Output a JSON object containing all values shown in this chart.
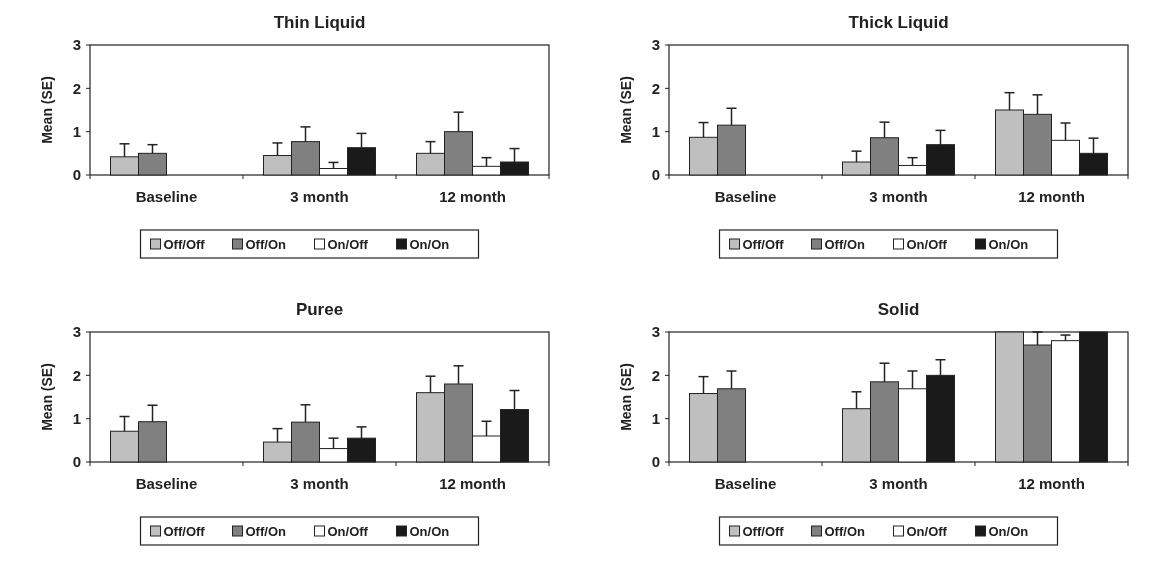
{
  "chart_data": [
    {
      "type": "bar",
      "title": "Thin Liquid",
      "ylabel": "Mean (SE)",
      "categories": [
        "Baseline",
        "3 month",
        "12 month"
      ],
      "ylim": [
        0,
        3
      ],
      "yticks": [
        0,
        1,
        2,
        3
      ],
      "legend": "bottom",
      "series": [
        {
          "name": "Off/Off",
          "color": "#bfbfbf",
          "values": [
            0.42,
            0.45,
            0.5
          ],
          "errors": [
            [
              0.42,
              0.72
            ],
            [
              0.45,
              0.74
            ],
            [
              0.5,
              0.77
            ]
          ]
        },
        {
          "name": "Off/On",
          "color": "#808080",
          "values": [
            0.5,
            0.77,
            1.0
          ],
          "errors": [
            [
              0.5,
              0.7
            ],
            [
              0.77,
              1.11
            ],
            [
              1.0,
              1.45
            ]
          ]
        },
        {
          "name": "On/Off",
          "color": "#ffffff",
          "values": [
            null,
            0.15,
            0.2
          ],
          "errors": [
            null,
            [
              0.15,
              0.29
            ],
            [
              0.2,
              0.4
            ]
          ]
        },
        {
          "name": "On/On",
          "color": "#1a1a1a",
          "values": [
            null,
            0.63,
            0.3
          ],
          "errors": [
            null,
            [
              0.63,
              0.96
            ],
            [
              0.3,
              0.61
            ]
          ]
        }
      ]
    },
    {
      "type": "bar",
      "title": "Thick Liquid",
      "ylabel": "Mean (SE)",
      "categories": [
        "Baseline",
        "3 month",
        "12 month"
      ],
      "ylim": [
        0,
        3
      ],
      "yticks": [
        0,
        1,
        2,
        3
      ],
      "legend": "bottom",
      "series": [
        {
          "name": "Off/Off",
          "color": "#bfbfbf",
          "values": [
            0.87,
            0.3,
            1.5
          ],
          "errors": [
            [
              0.87,
              1.21
            ],
            [
              0.3,
              0.55
            ],
            [
              1.5,
              1.9
            ]
          ]
        },
        {
          "name": "Off/On",
          "color": "#808080",
          "values": [
            1.15,
            0.86,
            1.4
          ],
          "errors": [
            [
              1.15,
              1.54
            ],
            [
              0.86,
              1.22
            ],
            [
              1.4,
              1.85
            ]
          ]
        },
        {
          "name": "On/Off",
          "color": "#ffffff",
          "values": [
            null,
            0.22,
            0.8
          ],
          "errors": [
            null,
            [
              0.22,
              0.4
            ],
            [
              0.8,
              1.2
            ]
          ]
        },
        {
          "name": "On/On",
          "color": "#1a1a1a",
          "values": [
            null,
            0.7,
            0.5
          ],
          "errors": [
            null,
            [
              0.7,
              1.03
            ],
            [
              0.5,
              0.85
            ]
          ]
        }
      ]
    },
    {
      "type": "bar",
      "title": "Puree",
      "ylabel": "Mean (SE)",
      "categories": [
        "Baseline",
        "3 month",
        "12 month"
      ],
      "ylim": [
        0,
        3
      ],
      "yticks": [
        0,
        1,
        2,
        3
      ],
      "legend": "bottom",
      "series": [
        {
          "name": "Off/Off",
          "color": "#bfbfbf",
          "values": [
            0.71,
            0.46,
            1.6
          ],
          "errors": [
            [
              0.71,
              1.05
            ],
            [
              0.46,
              0.77
            ],
            [
              1.6,
              1.98
            ]
          ]
        },
        {
          "name": "Off/On",
          "color": "#808080",
          "values": [
            0.93,
            0.92,
            1.8
          ],
          "errors": [
            [
              0.93,
              1.31
            ],
            [
              0.92,
              1.32
            ],
            [
              1.8,
              2.22
            ]
          ]
        },
        {
          "name": "On/Off",
          "color": "#ffffff",
          "values": [
            null,
            0.31,
            0.6
          ],
          "errors": [
            null,
            [
              0.31,
              0.55
            ],
            [
              0.6,
              0.94
            ]
          ]
        },
        {
          "name": "On/On",
          "color": "#1a1a1a",
          "values": [
            null,
            0.55,
            1.21
          ],
          "errors": [
            null,
            [
              0.55,
              0.81
            ],
            [
              1.21,
              1.65
            ]
          ]
        }
      ]
    },
    {
      "type": "bar",
      "title": "Solid",
      "ylabel": "Mean (SE)",
      "categories": [
        "Baseline",
        "3 month",
        "12 month"
      ],
      "ylim": [
        0,
        3
      ],
      "yticks": [
        0,
        1,
        2,
        3
      ],
      "legend": "bottom",
      "series": [
        {
          "name": "Off/Off",
          "color": "#bfbfbf",
          "values": [
            1.58,
            1.23,
            3
          ],
          "errors": [
            [
              1.58,
              1.97
            ],
            [
              1.23,
              1.62
            ],
            null
          ]
        },
        {
          "name": "Off/On",
          "color": "#808080",
          "values": [
            1.69,
            1.85,
            2.7
          ],
          "errors": [
            [
              1.69,
              2.1
            ],
            [
              1.85,
              2.28
            ],
            [
              2.7,
              3
            ]
          ]
        },
        {
          "name": "On/Off",
          "color": "#ffffff",
          "values": [
            null,
            1.69,
            2.8
          ],
          "errors": [
            null,
            [
              1.69,
              2.1
            ],
            [
              2.8,
              2.93
            ]
          ]
        },
        {
          "name": "On/On",
          "color": "#1a1a1a",
          "values": [
            null,
            2.0,
            3
          ],
          "errors": [
            null,
            [
              2.0,
              2.36
            ],
            null
          ]
        }
      ]
    }
  ]
}
